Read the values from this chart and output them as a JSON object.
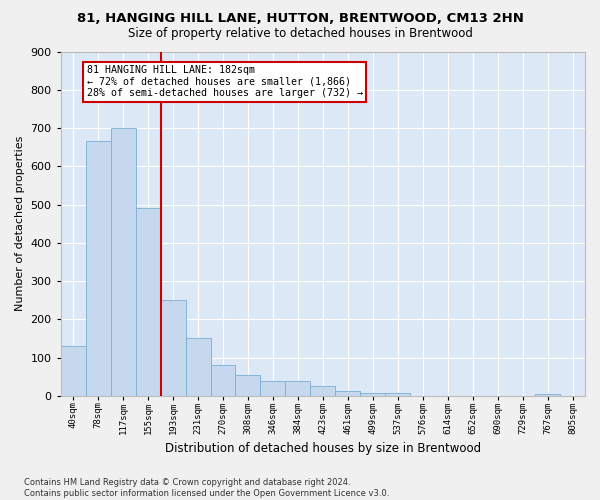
{
  "title": "81, HANGING HILL LANE, HUTTON, BRENTWOOD, CM13 2HN",
  "subtitle": "Size of property relative to detached houses in Brentwood",
  "xlabel": "Distribution of detached houses by size in Brentwood",
  "ylabel": "Number of detached properties",
  "bar_color": "#c5d8ee",
  "bar_edge_color": "#7bafd4",
  "background_color": "#dce8f5",
  "grid_color": "#ffffff",
  "bin_labels": [
    "40sqm",
    "78sqm",
    "117sqm",
    "155sqm",
    "193sqm",
    "231sqm",
    "270sqm",
    "308sqm",
    "346sqm",
    "384sqm",
    "423sqm",
    "461sqm",
    "499sqm",
    "537sqm",
    "576sqm",
    "614sqm",
    "652sqm",
    "690sqm",
    "729sqm",
    "767sqm",
    "805sqm"
  ],
  "bar_values": [
    130,
    665,
    700,
    490,
    250,
    150,
    80,
    55,
    40,
    40,
    25,
    12,
    8,
    8,
    0,
    0,
    0,
    0,
    0,
    5,
    0
  ],
  "vline_pos": 3.5,
  "annotation_text": "81 HANGING HILL LANE: 182sqm\n← 72% of detached houses are smaller (1,866)\n28% of semi-detached houses are larger (732) →",
  "annotation_box_color": "#ffffff",
  "annotation_box_edge_color": "#cc0000",
  "vline_color": "#cc0000",
  "ylim": [
    0,
    900
  ],
  "yticks": [
    0,
    100,
    200,
    300,
    400,
    500,
    600,
    700,
    800,
    900
  ],
  "footnote": "Contains HM Land Registry data © Crown copyright and database right 2024.\nContains public sector information licensed under the Open Government Licence v3.0.",
  "fig_facecolor": "#f0f0f0"
}
